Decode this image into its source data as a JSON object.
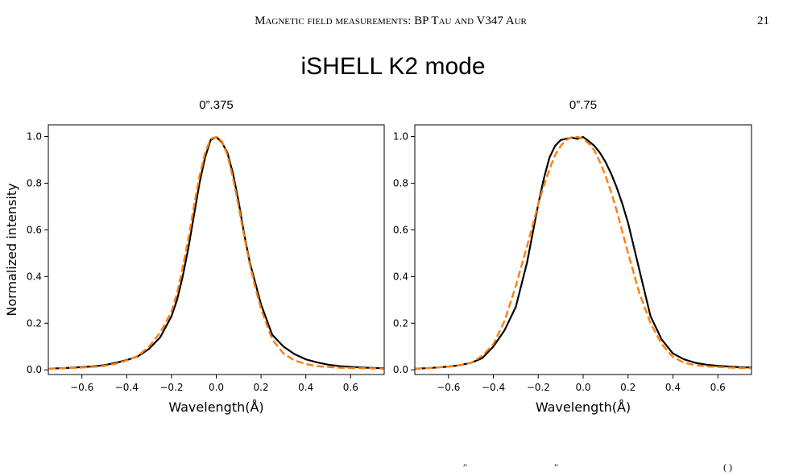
{
  "page": {
    "running_head": "Magnetic field measurements: BP Tau and V347 Aur",
    "page_number": "21",
    "bottom_fragments": [
      "″",
      "″",
      "( )"
    ]
  },
  "chart_data": {
    "type": "line",
    "title": "iSHELL K2 mode",
    "colors": {
      "observed": "#000000",
      "model": "#ff7f0e"
    },
    "panels": [
      {
        "title": "0”.375",
        "xlabel": "Wavelength(Å)",
        "ylabel": "Normalized intensity",
        "xlim": [
          -0.75,
          0.75
        ],
        "ylim": [
          -0.02,
          1.05
        ],
        "xticks": [
          -0.6,
          -0.4,
          -0.2,
          0.0,
          0.2,
          0.4,
          0.6
        ],
        "xtick_labels": [
          "−0.6",
          "−0.4",
          "−0.2",
          "0.0",
          "0.2",
          "0.4",
          "0.6"
        ],
        "yticks": [
          0.0,
          0.2,
          0.4,
          0.6,
          0.8,
          1.0
        ],
        "ytick_labels": [
          "0.0",
          "0.2",
          "0.4",
          "0.6",
          "0.8",
          "1.0"
        ],
        "series": [
          {
            "style": "solid",
            "color": "#000000",
            "x": [
              -0.75,
              -0.7,
              -0.65,
              -0.6,
              -0.55,
              -0.5,
              -0.45,
              -0.4,
              -0.35,
              -0.3,
              -0.25,
              -0.2,
              -0.175,
              -0.15,
              -0.125,
              -0.1,
              -0.075,
              -0.05,
              -0.025,
              0.0,
              0.025,
              0.05,
              0.075,
              0.1,
              0.125,
              0.15,
              0.175,
              0.2,
              0.25,
              0.3,
              0.35,
              0.4,
              0.45,
              0.5,
              0.55,
              0.6,
              0.65,
              0.7,
              0.75
            ],
            "y": [
              0.005,
              0.007,
              0.009,
              0.012,
              0.015,
              0.02,
              0.03,
              0.042,
              0.058,
              0.09,
              0.14,
              0.23,
              0.3,
              0.4,
              0.52,
              0.66,
              0.8,
              0.91,
              0.985,
              0.998,
              0.975,
              0.93,
              0.84,
              0.72,
              0.58,
              0.46,
              0.37,
              0.28,
              0.15,
              0.1,
              0.067,
              0.045,
              0.032,
              0.022,
              0.016,
              0.013,
              0.01,
              0.008,
              0.007
            ]
          },
          {
            "style": "dashed",
            "color": "#ff7f0e",
            "x": [
              -0.75,
              -0.7,
              -0.65,
              -0.6,
              -0.55,
              -0.5,
              -0.45,
              -0.4,
              -0.35,
              -0.3,
              -0.25,
              -0.2,
              -0.175,
              -0.15,
              -0.125,
              -0.1,
              -0.075,
              -0.05,
              -0.025,
              0.0,
              0.025,
              0.05,
              0.075,
              0.1,
              0.125,
              0.15,
              0.175,
              0.2,
              0.25,
              0.3,
              0.35,
              0.4,
              0.45,
              0.5,
              0.55,
              0.6,
              0.65,
              0.7,
              0.75
            ],
            "y": [
              0.005,
              0.006,
              0.008,
              0.01,
              0.013,
              0.017,
              0.026,
              0.04,
              0.06,
              0.1,
              0.16,
              0.25,
              0.33,
              0.44,
              0.56,
              0.7,
              0.83,
              0.93,
              0.99,
              0.998,
              0.98,
              0.92,
              0.82,
              0.7,
              0.57,
              0.45,
              0.35,
              0.26,
              0.13,
              0.07,
              0.04,
              0.025,
              0.016,
              0.012,
              0.009,
              0.008,
              0.007,
              0.006,
              0.005
            ]
          }
        ]
      },
      {
        "title": "0”.75",
        "xlabel": "Wavelength(Å)",
        "ylabel": "",
        "xlim": [
          -0.75,
          0.75
        ],
        "ylim": [
          -0.02,
          1.05
        ],
        "xticks": [
          -0.6,
          -0.4,
          -0.2,
          0.0,
          0.2,
          0.4,
          0.6
        ],
        "xtick_labels": [
          "−0.6",
          "−0.4",
          "−0.2",
          "0.0",
          "0.2",
          "0.4",
          "0.6"
        ],
        "yticks": [
          0.0,
          0.2,
          0.4,
          0.6,
          0.8,
          1.0
        ],
        "ytick_labels": [
          "0.0",
          "0.2",
          "0.4",
          "0.6",
          "0.8",
          "1.0"
        ],
        "series": [
          {
            "style": "solid",
            "color": "#000000",
            "x": [
              -0.75,
              -0.7,
              -0.65,
              -0.6,
              -0.55,
              -0.5,
              -0.45,
              -0.4,
              -0.35,
              -0.3,
              -0.25,
              -0.2,
              -0.175,
              -0.15,
              -0.125,
              -0.1,
              -0.075,
              -0.05,
              -0.025,
              0.0,
              0.025,
              0.05,
              0.075,
              0.1,
              0.125,
              0.15,
              0.175,
              0.2,
              0.25,
              0.3,
              0.35,
              0.4,
              0.45,
              0.5,
              0.55,
              0.6,
              0.65,
              0.7,
              0.75
            ],
            "y": [
              0.005,
              0.007,
              0.01,
              0.014,
              0.02,
              0.03,
              0.05,
              0.1,
              0.17,
              0.27,
              0.46,
              0.71,
              0.82,
              0.91,
              0.96,
              0.985,
              0.99,
              0.995,
              0.99,
              0.998,
              0.98,
              0.96,
              0.93,
              0.89,
              0.84,
              0.78,
              0.71,
              0.63,
              0.43,
              0.23,
              0.13,
              0.07,
              0.045,
              0.03,
              0.022,
              0.017,
              0.014,
              0.011,
              0.01
            ]
          },
          {
            "style": "dashed",
            "color": "#ff7f0e",
            "x": [
              -0.75,
              -0.7,
              -0.65,
              -0.6,
              -0.55,
              -0.5,
              -0.45,
              -0.4,
              -0.35,
              -0.3,
              -0.25,
              -0.2,
              -0.175,
              -0.15,
              -0.125,
              -0.1,
              -0.075,
              -0.05,
              -0.025,
              0.0,
              0.025,
              0.05,
              0.075,
              0.1,
              0.125,
              0.15,
              0.175,
              0.2,
              0.25,
              0.3,
              0.35,
              0.4,
              0.45,
              0.5,
              0.55,
              0.6,
              0.65,
              0.7,
              0.75
            ],
            "y": [
              0.005,
              0.007,
              0.01,
              0.014,
              0.019,
              0.03,
              0.06,
              0.11,
              0.21,
              0.36,
              0.53,
              0.71,
              0.79,
              0.86,
              0.92,
              0.96,
              0.985,
              0.998,
              0.998,
              0.99,
              0.97,
              0.94,
              0.89,
              0.83,
              0.76,
              0.68,
              0.59,
              0.5,
              0.33,
              0.2,
              0.11,
              0.055,
              0.03,
              0.02,
              0.015,
              0.012,
              0.01,
              0.008,
              0.007
            ]
          }
        ]
      }
    ]
  }
}
